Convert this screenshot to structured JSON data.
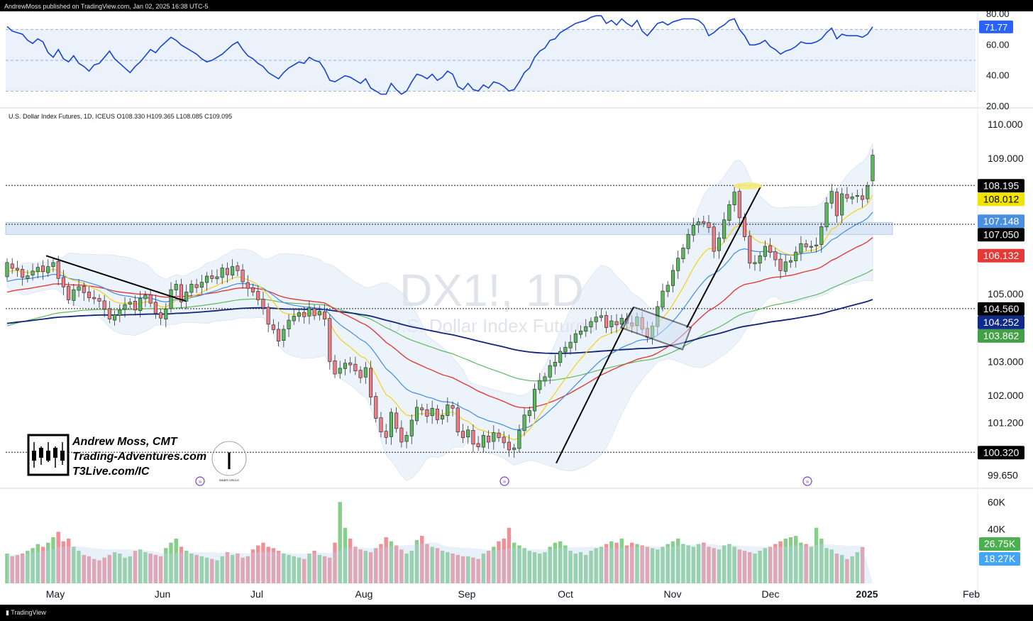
{
  "header": {
    "published": "AndrewMoss published on TradingView.com, Jan 02, 2025 16:38 UTC-5"
  },
  "footer": {
    "brand": "TradingView"
  },
  "watermark": {
    "big": "DX1!, 1D",
    "sub": "U.S. Dollar Index Futures"
  },
  "branding": {
    "line1": "Andrew Moss, CMT",
    "line2": "Trading-Adventures.com",
    "line3": "T3Live.com/IC",
    "logo_text": "INNER CIRCLE"
  },
  "colors": {
    "up": "#5cb85c",
    "down": "#f07c85",
    "ma10": "#f2d21b",
    "ma20": "#3d8ee8",
    "ma50": "#e33b3b",
    "ma100": "#60b860",
    "ma200": "#10257a",
    "rsi": "#1845d6",
    "band": "#dfeaf8"
  },
  "chart_data": [
    {
      "type": "line",
      "title": "U.S. Dollar Index Futures, 1D, ICEUS",
      "ohlc": {
        "O": "O108.330",
        "H": "H109.365",
        "L": "L108.085",
        "C": "C109.095"
      },
      "x_ticks": [
        "May",
        "Jun",
        "Jul",
        "Aug",
        "Sep",
        "Oct",
        "Nov",
        "Dec",
        "2025",
        "Feb"
      ],
      "y_ticks": [
        "110.000",
        "109.000",
        "103.000",
        "102.000",
        "101.200",
        "99.650"
      ],
      "ylim": [
        99.3,
        110.4
      ],
      "price_labels": [
        {
          "value": 108.195,
          "text": "108.195",
          "bg": "#000000",
          "fg": "#ffffff"
        },
        {
          "value": 108.012,
          "text": "108.012",
          "bg": "#f2e300",
          "fg": "#000000"
        },
        {
          "value": 107.148,
          "text": "107.148",
          "bg": "#4a90e2",
          "fg": "#ffffff"
        },
        {
          "value": 107.05,
          "text": "107.050",
          "bg": "#000000",
          "fg": "#ffffff"
        },
        {
          "value": 106.132,
          "text": "106.132",
          "bg": "#e53935",
          "fg": "#ffffff"
        },
        {
          "value": 104.56,
          "text": "104.560",
          "bg": "#000000",
          "fg": "#ffffff"
        },
        {
          "value": 104.252,
          "text": "104.252",
          "bg": "#0f2a8a",
          "fg": "#ffffff"
        },
        {
          "value": 103.862,
          "text": "103.862",
          "bg": "#43a047",
          "fg": "#ffffff"
        },
        {
          "value": 100.32,
          "text": "100.320",
          "bg": "#000000",
          "fg": "#ffffff"
        }
      ],
      "extra_y_labels": [
        {
          "value": 105.0,
          "text": "105.000"
        }
      ],
      "horizontal_levels": [
        108.195,
        107.05,
        104.56,
        100.32
      ],
      "zone": [
        106.75,
        107.1
      ],
      "close": [
        105.92,
        105.75,
        105.7,
        105.48,
        105.53,
        105.67,
        105.78,
        105.65,
        105.8,
        105.92,
        105.45,
        105.2,
        104.82,
        105.12,
        105.21,
        105.03,
        104.88,
        104.85,
        104.78,
        104.55,
        104.25,
        104.38,
        104.52,
        104.68,
        104.75,
        104.52,
        104.86,
        104.96,
        104.72,
        104.42,
        104.28,
        104.55,
        105.12,
        105.28,
        104.76,
        105.05,
        105.28,
        105.18,
        105.34,
        105.52,
        105.45,
        105.5,
        105.76,
        105.56,
        105.8,
        105.68,
        105.35,
        105.16,
        105.05,
        104.82,
        104.58,
        104.1,
        103.94,
        103.6,
        103.95,
        104.22,
        104.34,
        104.44,
        104.32,
        104.58,
        104.35,
        104.48,
        104.25,
        103.0,
        102.63,
        102.8,
        102.95,
        102.9,
        102.72,
        102.52,
        102.82,
        101.95,
        101.32,
        100.92,
        100.76,
        101.5,
        101.02,
        100.62,
        100.82,
        101.27,
        101.65,
        101.57,
        101.38,
        101.62,
        101.28,
        101.41,
        101.72,
        101.62,
        100.92,
        100.75,
        100.98,
        100.56,
        100.48,
        100.82,
        100.62,
        100.9,
        100.75,
        100.6,
        100.39,
        100.45,
        100.97,
        101.42,
        101.55,
        102.18,
        102.44,
        102.55,
        102.88,
        102.98,
        103.3,
        103.42,
        103.57,
        103.82,
        103.9,
        104.03,
        104.18,
        104.31,
        104.35,
        104.0,
        104.2,
        104.08,
        104.28,
        104.12,
        104.05,
        104.32,
        103.95,
        103.72,
        104.05,
        104.62,
        105.08,
        105.25,
        105.69,
        106.05,
        106.35,
        106.75,
        107.02,
        107.12,
        107.08,
        106.95,
        106.25,
        106.65,
        107.18,
        107.63,
        108.0,
        107.24,
        106.68,
        105.9,
        105.92,
        106.12,
        106.4,
        106.22,
        106.0,
        105.68,
        105.94,
        105.98,
        106.23,
        106.48,
        106.38,
        106.4,
        106.44,
        106.98,
        107.68,
        108.02,
        107.3,
        107.95,
        107.82,
        107.86,
        107.9,
        107.78,
        108.18,
        109.09
      ],
      "open": [
        105.5,
        105.88,
        105.75,
        105.72,
        105.45,
        105.55,
        105.65,
        105.82,
        105.62,
        105.8,
        105.95,
        105.48,
        105.22,
        104.8,
        105.1,
        105.22,
        105.05,
        104.89,
        104.86,
        104.79,
        104.56,
        104.22,
        104.36,
        104.54,
        104.69,
        104.78,
        104.5,
        104.85,
        104.97,
        104.75,
        104.44,
        104.25,
        104.56,
        105.11,
        105.27,
        104.78,
        105.04,
        105.27,
        105.19,
        105.33,
        105.53,
        105.44,
        105.48,
        105.75,
        105.55,
        105.82,
        105.7,
        105.33,
        105.18,
        105.07,
        104.84,
        104.6,
        104.08,
        103.95,
        103.62,
        103.96,
        104.2,
        104.33,
        104.45,
        104.34,
        104.56,
        104.37,
        104.47,
        104.27,
        103.02,
        102.65,
        102.79,
        102.96,
        102.92,
        102.74,
        102.54,
        102.8,
        101.97,
        101.34,
        100.94,
        100.78,
        101.48,
        101.04,
        100.64,
        100.8,
        101.25,
        101.63,
        101.58,
        101.4,
        101.6,
        101.3,
        101.4,
        101.7,
        101.63,
        100.94,
        100.77,
        100.97,
        100.58,
        100.47,
        100.8,
        100.64,
        100.89,
        100.77,
        100.62,
        100.4,
        100.43,
        100.96,
        101.4,
        101.54,
        102.17,
        102.42,
        102.54,
        102.86,
        102.97,
        103.28,
        103.4,
        103.56,
        103.8,
        103.89,
        104.02,
        104.17,
        104.3,
        104.36,
        104.02,
        104.18,
        104.1,
        104.26,
        104.14,
        104.06,
        104.3,
        103.97,
        103.7,
        104.03,
        104.6,
        105.06,
        105.24,
        105.68,
        106.03,
        106.33,
        106.73,
        107.03,
        107.13,
        107.1,
        106.97,
        106.27,
        106.63,
        107.16,
        107.62,
        108.02,
        107.26,
        106.7,
        105.88,
        105.9,
        106.1,
        106.42,
        106.24,
        106.02,
        105.66,
        105.93,
        105.97,
        106.21,
        106.47,
        106.39,
        106.42,
        106.45,
        106.97,
        107.67,
        108.0,
        107.32,
        107.93,
        107.8,
        107.88,
        107.89,
        107.8,
        108.33
      ],
      "vol_k": [
        22,
        20,
        21,
        22,
        24,
        26,
        29,
        27,
        30,
        34,
        38,
        31,
        33,
        27,
        24,
        21,
        20,
        18,
        17,
        19,
        21,
        23,
        22,
        19,
        20,
        24,
        25,
        23,
        22,
        21,
        20,
        26,
        30,
        33,
        27,
        24,
        22,
        21,
        20,
        19,
        18,
        17,
        20,
        23,
        21,
        22,
        19,
        20,
        25,
        28,
        30,
        27,
        26,
        24,
        22,
        21,
        20,
        19,
        18,
        22,
        24,
        21,
        20,
        19,
        30,
        60,
        41,
        33,
        27,
        25,
        24,
        23,
        26,
        29,
        34,
        31,
        28,
        25,
        22,
        24,
        32,
        35,
        29,
        27,
        26,
        24,
        23,
        22,
        21,
        20,
        20,
        19,
        18,
        22,
        24,
        27,
        31,
        33,
        41,
        30,
        28,
        26,
        24,
        23,
        22,
        23,
        27,
        30,
        31,
        28,
        24,
        22,
        23,
        21,
        24,
        26,
        27,
        29,
        31,
        30,
        33,
        28,
        30,
        29,
        28,
        27,
        26,
        25,
        27,
        29,
        31,
        33,
        29,
        28,
        27,
        29,
        30,
        27,
        26,
        25,
        28,
        29,
        27,
        25,
        24,
        23,
        22,
        24,
        26,
        27,
        29,
        31,
        33,
        34,
        35,
        30,
        29,
        27,
        41,
        33,
        26,
        25,
        22,
        21,
        18,
        20,
        23,
        26.75
      ],
      "vol_ticks": [
        "60K",
        "40K"
      ],
      "vol_labels": [
        {
          "text": "26.75K",
          "bg": "#4caf50"
        },
        {
          "text": "18.27K",
          "bg": "#42a5f5"
        }
      ],
      "rsi": [
        72,
        69,
        68,
        67,
        63,
        61,
        64,
        62,
        55,
        52,
        57,
        51,
        49,
        53,
        48,
        46,
        43,
        47,
        48,
        52,
        56,
        51,
        48,
        45,
        42,
        46,
        49,
        53,
        57,
        55,
        59,
        62,
        65,
        63,
        60,
        58,
        56,
        54,
        51,
        49,
        50,
        52,
        54,
        57,
        60,
        62,
        57,
        53,
        51,
        48,
        46,
        42,
        40,
        38,
        42,
        45,
        47,
        49,
        48,
        52,
        50,
        49,
        44,
        37,
        36,
        38,
        40,
        39,
        37,
        35,
        38,
        32,
        30,
        28,
        28,
        35,
        31,
        28,
        30,
        36,
        41,
        40,
        38,
        41,
        37,
        39,
        43,
        41,
        33,
        31,
        35,
        31,
        30,
        34,
        32,
        36,
        35,
        33,
        30,
        31,
        36,
        42,
        45,
        52,
        56,
        58,
        63,
        64,
        68,
        70,
        72,
        74,
        75,
        76,
        78,
        79,
        79,
        74,
        76,
        73,
        77,
        74,
        72,
        76,
        69,
        66,
        70,
        74,
        75,
        73,
        75,
        76,
        77,
        77,
        77,
        76,
        73,
        66,
        68,
        71,
        73,
        76,
        77,
        70,
        66,
        60,
        60,
        61,
        63,
        59,
        57,
        54,
        56,
        57,
        59,
        62,
        61,
        61,
        62,
        64,
        68,
        71,
        64,
        67,
        66,
        66,
        66,
        65,
        67,
        71.77
      ],
      "rsi_ticks": [
        "80.00",
        "60.00",
        "40.00",
        "20.00"
      ],
      "rsi_label": "71.77",
      "rsi_ylim": [
        20,
        80
      ]
    }
  ]
}
